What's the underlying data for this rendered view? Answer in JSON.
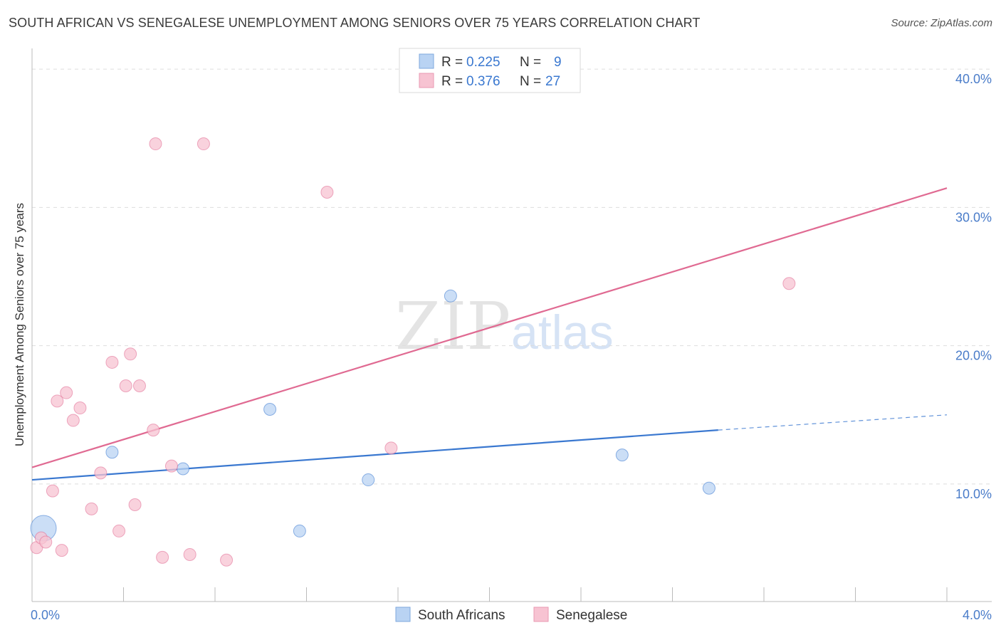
{
  "header": {
    "title": "SOUTH AFRICAN VS SENEGALESE UNEMPLOYMENT AMONG SENIORS OVER 75 YEARS CORRELATION CHART",
    "source": "Source: ZipAtlas.com"
  },
  "watermark": {
    "zip": "ZIP",
    "atlas": "atlas"
  },
  "colors": {
    "south_african": "#3a78d0",
    "south_african_fill": "#b9d3f3",
    "senegalese": "#e06a92",
    "senegalese_fill": "#f7c3d2",
    "tick_label": "#4a7cc9",
    "grid": "#dddddd"
  },
  "legend": {
    "r_label": "R =",
    "n_label": "N =",
    "rows": [
      {
        "series": "South Africans",
        "r": "0.225",
        "n": "9"
      },
      {
        "series": "Senegalese",
        "r": "0.376",
        "n": "27"
      }
    ]
  },
  "chart_data": {
    "type": "scatter",
    "title": "SOUTH AFRICAN VS SENEGALESE UNEMPLOYMENT AMONG SENIORS OVER 75 YEARS CORRELATION CHART",
    "xlabel": "",
    "ylabel": "Unemployment Among Seniors over 75 years",
    "xlim": [
      0,
      4
    ],
    "ylim": [
      1.5,
      41.5
    ],
    "x_tick_labels": [
      {
        "value": 0,
        "label": "0.0%"
      },
      {
        "value": 4,
        "label": "4.0%"
      }
    ],
    "y_tick_labels": [
      {
        "value": 10,
        "label": "10.0%"
      },
      {
        "value": 20,
        "label": "20.0%"
      },
      {
        "value": 30,
        "label": "30.0%"
      },
      {
        "value": 40,
        "label": "40.0%"
      }
    ],
    "y_gridlines": [
      10,
      20,
      30,
      40
    ],
    "grid": true,
    "legend_position": "top-center",
    "series": [
      {
        "name": "South Africans",
        "color": "#3a78d0",
        "points": [
          {
            "x": 0.05,
            "y": 6.8,
            "size": "large"
          },
          {
            "x": 0.35,
            "y": 12.3
          },
          {
            "x": 0.66,
            "y": 11.1
          },
          {
            "x": 1.04,
            "y": 15.4
          },
          {
            "x": 1.17,
            "y": 6.6
          },
          {
            "x": 1.47,
            "y": 10.3
          },
          {
            "x": 1.83,
            "y": 23.6
          },
          {
            "x": 2.58,
            "y": 12.1
          },
          {
            "x": 2.96,
            "y": 9.7
          }
        ],
        "trend": {
          "x0": 0.0,
          "y0": 10.3,
          "x1": 3.0,
          "y1": 13.9,
          "dashed_to_x": 4.0,
          "dashed_to_y": 15.0
        }
      },
      {
        "name": "Senegalese",
        "color": "#e06a92",
        "points": [
          {
            "x": 0.02,
            "y": 5.4
          },
          {
            "x": 0.04,
            "y": 6.1
          },
          {
            "x": 0.06,
            "y": 5.8
          },
          {
            "x": 0.09,
            "y": 9.5
          },
          {
            "x": 0.11,
            "y": 16.0
          },
          {
            "x": 0.13,
            "y": 5.2
          },
          {
            "x": 0.15,
            "y": 16.6
          },
          {
            "x": 0.18,
            "y": 14.6
          },
          {
            "x": 0.21,
            "y": 15.5
          },
          {
            "x": 0.26,
            "y": 8.2
          },
          {
            "x": 0.3,
            "y": 10.8
          },
          {
            "x": 0.35,
            "y": 18.8
          },
          {
            "x": 0.38,
            "y": 6.6
          },
          {
            "x": 0.41,
            "y": 17.1
          },
          {
            "x": 0.43,
            "y": 19.4
          },
          {
            "x": 0.45,
            "y": 8.5
          },
          {
            "x": 0.47,
            "y": 17.1
          },
          {
            "x": 0.53,
            "y": 13.9
          },
          {
            "x": 0.54,
            "y": 34.6
          },
          {
            "x": 0.57,
            "y": 4.7
          },
          {
            "x": 0.61,
            "y": 11.3
          },
          {
            "x": 0.69,
            "y": 4.9
          },
          {
            "x": 0.75,
            "y": 34.6
          },
          {
            "x": 0.85,
            "y": 4.5
          },
          {
            "x": 1.29,
            "y": 31.1
          },
          {
            "x": 1.57,
            "y": 12.6
          },
          {
            "x": 3.31,
            "y": 24.5
          }
        ],
        "trend": {
          "x0": 0.0,
          "y0": 11.2,
          "x1": 4.0,
          "y1": 31.4
        }
      }
    ]
  }
}
